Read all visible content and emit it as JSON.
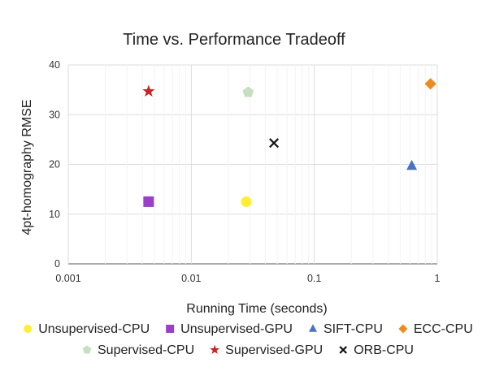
{
  "chart_data": {
    "type": "scatter",
    "title": "Time vs. Performance Tradeoff",
    "xlabel": "Running Time (seconds)",
    "ylabel": "4pt-homography RMSE",
    "x_scale": "log",
    "xlim": [
      0.001,
      1
    ],
    "ylim": [
      0,
      40
    ],
    "x_ticks": [
      "0.001",
      "0.01",
      "0.1",
      "1"
    ],
    "y_ticks": [
      "0",
      "10",
      "20",
      "30",
      "40"
    ],
    "grid": true,
    "legend_position": "bottom",
    "series": [
      {
        "name": "Unsupervised-CPU",
        "color": "#ffee33",
        "marker": "circle",
        "points": [
          {
            "x": 0.028,
            "y": 12.5
          }
        ]
      },
      {
        "name": "Unsupervised-GPU",
        "color": "#9b3fc8",
        "marker": "square",
        "points": [
          {
            "x": 0.0045,
            "y": 12.5
          }
        ]
      },
      {
        "name": "SIFT-CPU",
        "color": "#4a72c4",
        "marker": "triangle",
        "points": [
          {
            "x": 0.62,
            "y": 19.7
          }
        ]
      },
      {
        "name": "ECC-CPU",
        "color": "#ee8a1e",
        "marker": "diamond",
        "points": [
          {
            "x": 0.88,
            "y": 36.2
          }
        ]
      },
      {
        "name": "Supervised-CPU",
        "color": "#c5dfc0",
        "marker": "pentagon",
        "points": [
          {
            "x": 0.029,
            "y": 34.5
          }
        ]
      },
      {
        "name": "Supervised-GPU",
        "color": "#cc2222",
        "marker": "star",
        "points": [
          {
            "x": 0.0045,
            "y": 34.7
          }
        ]
      },
      {
        "name": "ORB-CPU",
        "color": "#111111",
        "marker": "x",
        "points": [
          {
            "x": 0.047,
            "y": 24.3
          }
        ]
      }
    ]
  }
}
